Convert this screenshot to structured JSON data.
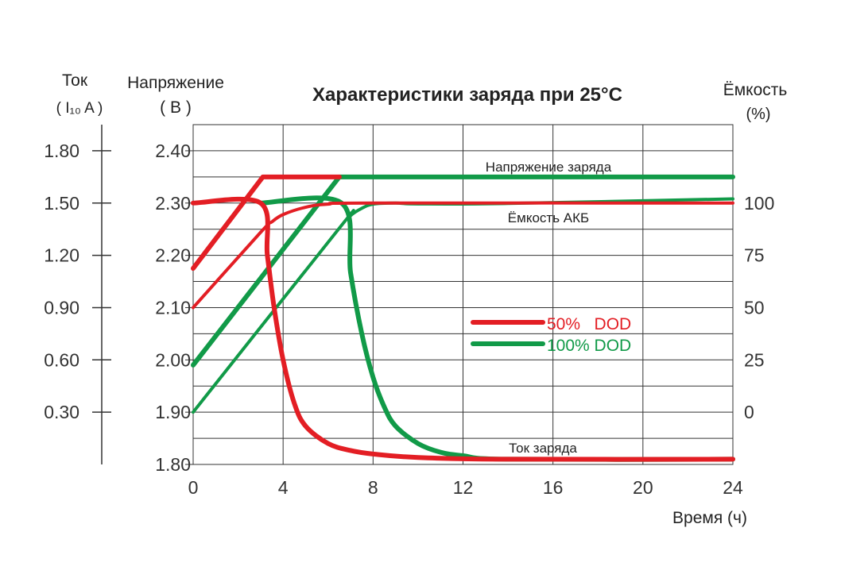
{
  "chart_data": {
    "type": "line",
    "title": "Характеристики заряда при 25°C",
    "xlabel": "Время (ч)",
    "x_ticks": [
      "0",
      "4",
      "8",
      "12",
      "16",
      "20",
      "24"
    ],
    "xlim": [
      0,
      24
    ],
    "axes": {
      "current": {
        "label_line1": "Ток",
        "label_line2": "( I₁₀ A )",
        "ticks": [
          "1.80",
          "1.50",
          "1.20",
          "0.90",
          "0.60",
          "0.30"
        ],
        "ylim": [
          0,
          1.95
        ]
      },
      "voltage": {
        "label_line1": "Напряжение",
        "label_line2": "( В )",
        "ticks": [
          "2.40",
          "2.30",
          "2.20",
          "2.10",
          "2.00",
          "1.90",
          "1.80"
        ],
        "ylim": [
          1.8,
          2.45
        ]
      },
      "capacity": {
        "label_line1": "Ёмкость",
        "label_line2": "(%)",
        "ticks": [
          "100",
          "75",
          "50",
          "25",
          "0"
        ],
        "ylim": [
          -25,
          137.5
        ]
      }
    },
    "grid": true,
    "annotations": {
      "voltage": "Напряжение заряда",
      "capacity": "Ёмкость АКБ",
      "current": "Ток заряда"
    },
    "legend": {
      "placement": "center-right",
      "entries": [
        {
          "name": "50%   DOD",
          "color": "#e31e24"
        },
        {
          "name": "100% DOD",
          "color": "#119a48"
        }
      ]
    },
    "series": [
      {
        "name": "100% DOD voltage",
        "axis": "voltage",
        "color": "#119a48",
        "points": [
          [
            0,
            1.99
          ],
          [
            6.5,
            2.35
          ],
          [
            24,
            2.35
          ]
        ],
        "smooth": false
      },
      {
        "name": "100% DOD capacity",
        "axis": "capacity",
        "color": "#119a48",
        "points": [
          [
            0,
            0
          ],
          [
            6.5,
            88
          ],
          [
            7,
            94
          ],
          [
            7.5,
            97.5
          ],
          [
            8,
            99.5
          ],
          [
            9,
            100
          ],
          [
            10,
            99.6
          ],
          [
            14,
            99.8
          ],
          [
            24,
            102
          ]
        ],
        "smooth": true
      },
      {
        "name": "100% DOD current",
        "axis": "current",
        "color": "#119a48",
        "points": [
          [
            3,
            1.5
          ],
          [
            6.6,
            1.5
          ],
          [
            7,
            1.1
          ],
          [
            7.5,
            0.75
          ],
          [
            8,
            0.5
          ],
          [
            8.5,
            0.33
          ],
          [
            9,
            0.22
          ],
          [
            10,
            0.12
          ],
          [
            11,
            0.07
          ],
          [
            12,
            0.05
          ],
          [
            14,
            0.03
          ],
          [
            24,
            0.03
          ]
        ],
        "smooth": true
      },
      {
        "name": "50% DOD voltage",
        "axis": "voltage",
        "color": "#e31e24",
        "points": [
          [
            0,
            2.175
          ],
          [
            3.1,
            2.35
          ],
          [
            6.5,
            2.35
          ]
        ],
        "smooth": false
      },
      {
        "name": "50% DOD capacity",
        "axis": "capacity",
        "color": "#e31e24",
        "points": [
          [
            0,
            50
          ],
          [
            3,
            86
          ],
          [
            3.5,
            91
          ],
          [
            4,
            94.5
          ],
          [
            5,
            98
          ],
          [
            6,
            99.5
          ],
          [
            8,
            100
          ],
          [
            24,
            100
          ]
        ],
        "smooth": true
      },
      {
        "name": "50% DOD current",
        "axis": "current",
        "color": "#e31e24",
        "points": [
          [
            0,
            1.5
          ],
          [
            3,
            1.5
          ],
          [
            3.3,
            1.2
          ],
          [
            3.6,
            0.9
          ],
          [
            4,
            0.6
          ],
          [
            4.5,
            0.35
          ],
          [
            5,
            0.22
          ],
          [
            6,
            0.12
          ],
          [
            7,
            0.08
          ],
          [
            8,
            0.06
          ],
          [
            10,
            0.04
          ],
          [
            14,
            0.03
          ],
          [
            24,
            0.03
          ]
        ],
        "smooth": true
      }
    ]
  }
}
